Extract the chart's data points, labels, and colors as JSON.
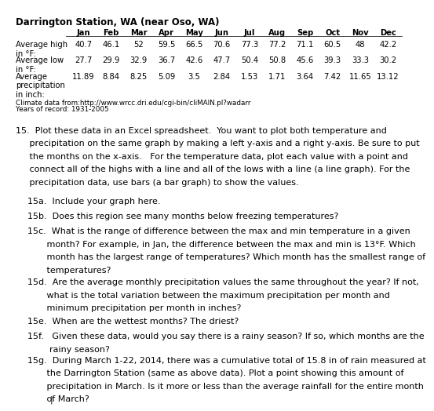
{
  "title": "Darrington Station, WA (near Oso, WA)",
  "months": [
    "Jan",
    "Feb",
    "Mar",
    "Apr",
    "May",
    "Jun",
    "Jul",
    "Aug",
    "Sep",
    "Oct",
    "Nov",
    "Dec"
  ],
  "avg_high": [
    40.7,
    46.1,
    52,
    59.5,
    66.5,
    70.6,
    77.3,
    77.2,
    71.1,
    60.5,
    48,
    42.2
  ],
  "avg_low": [
    27.7,
    29.9,
    32.9,
    36.7,
    42.6,
    47.7,
    50.4,
    50.8,
    45.6,
    39.3,
    33.3,
    30.2
  ],
  "precipitation": [
    11.89,
    8.84,
    8.25,
    5.09,
    3.5,
    2.84,
    1.53,
    1.71,
    3.64,
    7.42,
    11.65,
    13.12
  ],
  "climate_source": "Climate data from:http://www.wrcc.dri.edu/cgi-bin/cliMAIN.pl?wadarr",
  "years_record": "Years of record: 1931-2005",
  "label_high": "Average high\nin °F:",
  "label_low": "Average low\nin °F:",
  "label_precip": "Average\nprecipitation\nin inch:",
  "q15": "15.  Plot these data in an Excel spreadsheet.  You want to plot both temperature and\n      precipitation on the same graph by making a left y-axis and a right y-axis. Be sure to put\n      the months on the x-axis.   For the temperature data, plot each value with a point and\n      connect all of the highs with a line and all of the lows with a line (a line graph). For the\n      precipitation data, use bars (a bar graph) to show the values.",
  "q15a": "15a.  Include your graph here.",
  "q15b": "15b.  Does this region see many months below freezing temperatures?",
  "q15c": "15c.  What is the range of difference between the max and min temperature in a given\n        month? For example, in Jan, the difference between the max and min is 13°F. Which\n        month has the largest range of temperatures? Which month has the smallest range of\n        temperatures?",
  "q15d": "15d.  Are the average monthly precipitation values the same throughout the year? If not,\n        what is the total variation between the maximum precipitation per month and\n        minimum precipitation per month in inches?",
  "q15e": "15e.  When are the wettest months? The driest?",
  "q15f": "15f.   Given these data, would you say there is a rainy season? If so, which months are the\n        rainy season?",
  "q15g": "15g.  During March 1-22, 2014, there was a cumulative total of 15.8 in of rain measured at\n        the Darrington Station (same as above data). Plot a point showing this amount of\n        precipitation in March. Is it more or less than the average rainfall for the entire month\n        of March?",
  "tf": 7.2,
  "bf": 8.0,
  "title_fs": 8.5
}
